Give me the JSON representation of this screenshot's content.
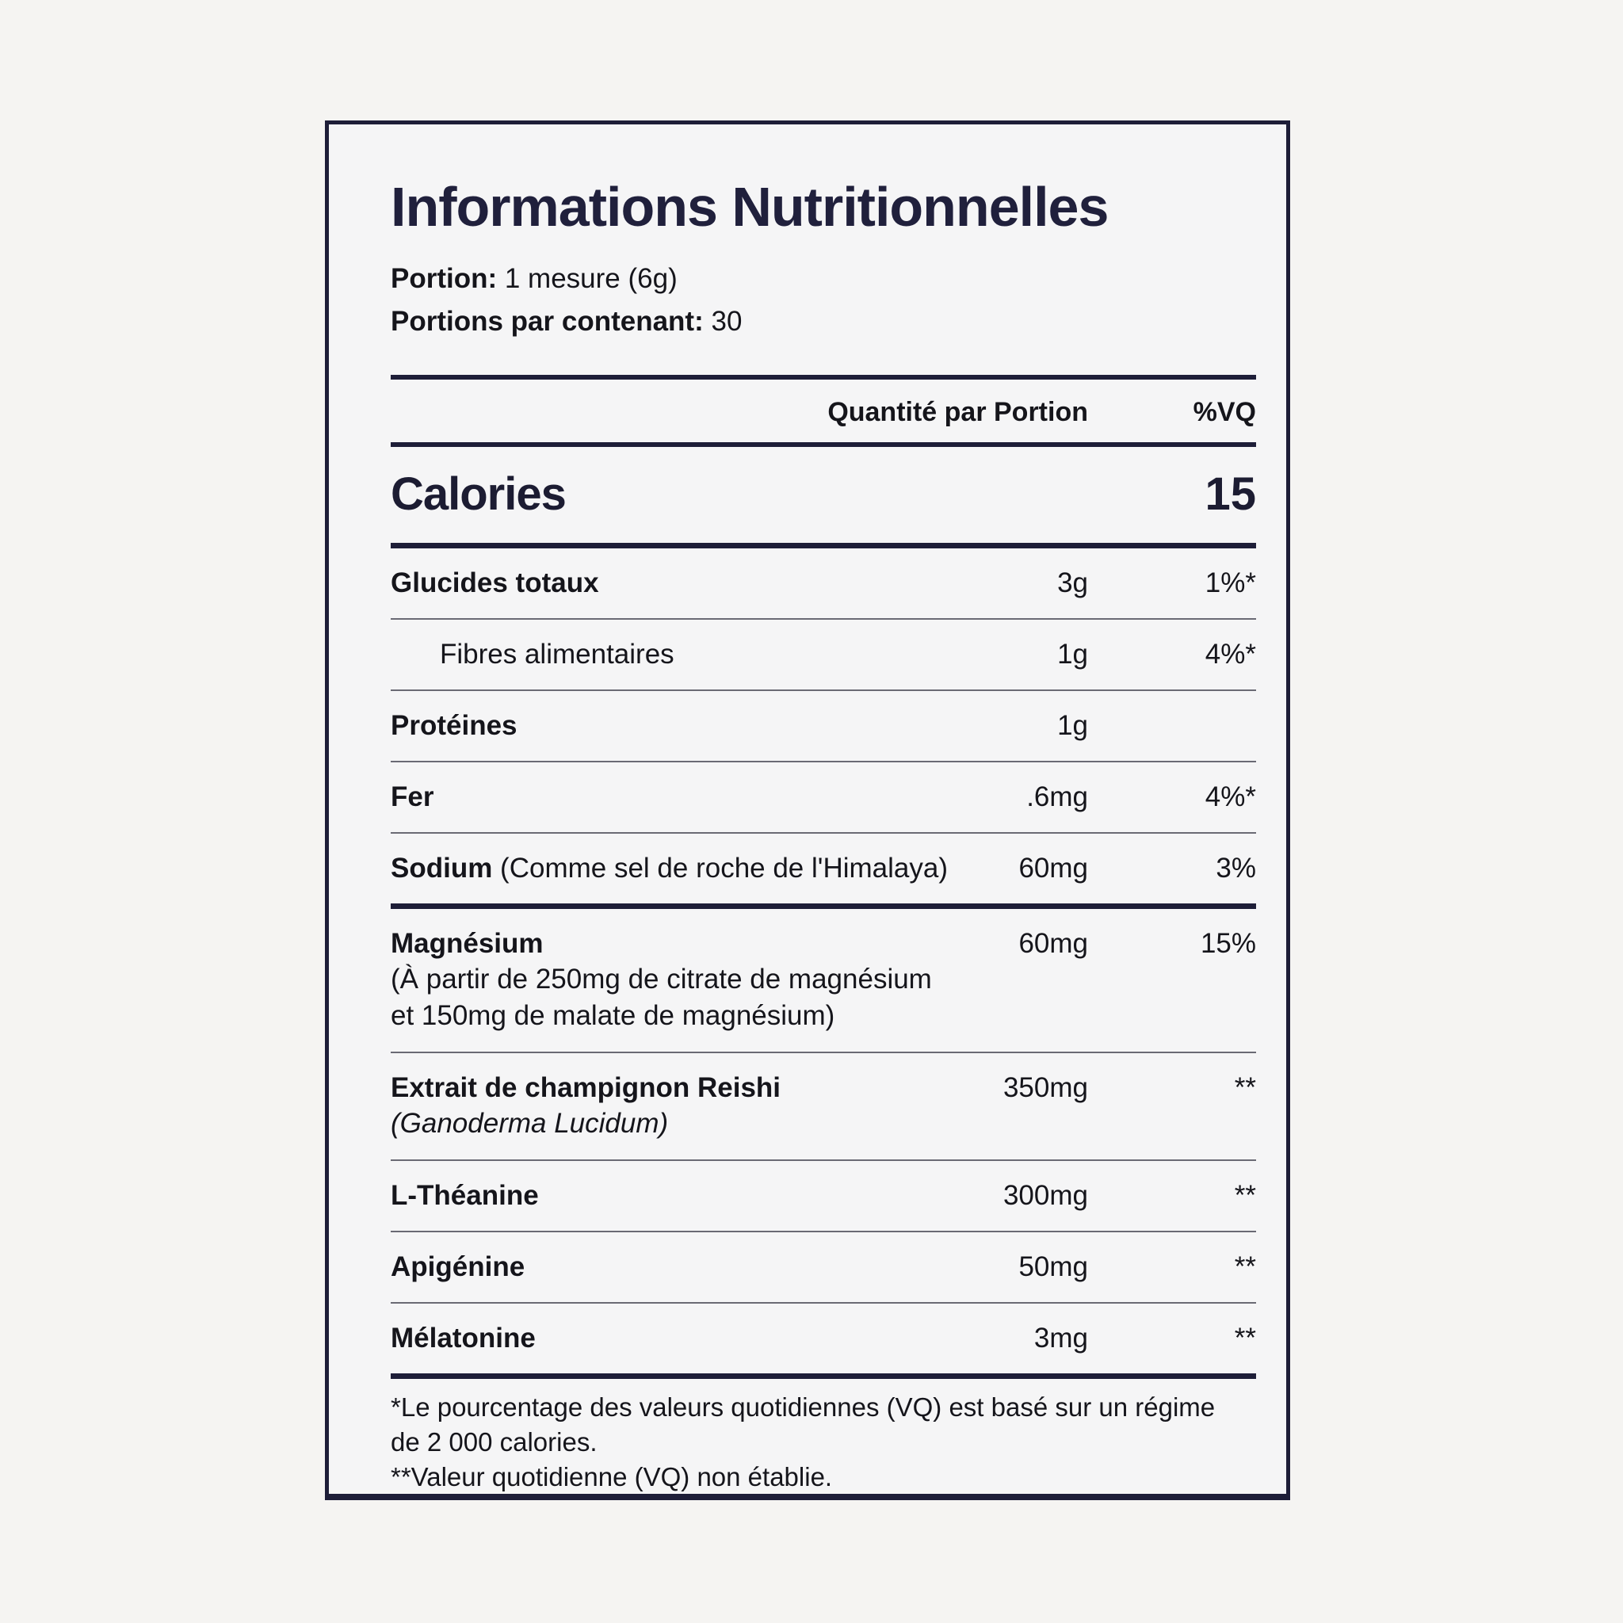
{
  "label": {
    "title": "Informations Nutritionnelles",
    "serving": {
      "portion_label": "Portion:",
      "portion_value": " 1 mesure (6g)",
      "servings_label": "Portions par contenant:",
      "servings_value": " 30"
    },
    "columns": {
      "amount_header": "Quantité par Portion",
      "dv_header": "%VQ"
    },
    "calories": {
      "name": "Calories",
      "value": "15"
    },
    "rows": {
      "glucides": {
        "name": "Glucides totaux",
        "amount": "3g",
        "dv": "1%*"
      },
      "fibres": {
        "name": "Fibres alimentaires",
        "amount": "1g",
        "dv": "4%*"
      },
      "proteines": {
        "name": "Protéines",
        "amount": "1g",
        "dv": ""
      },
      "fer": {
        "name": "Fer",
        "amount": ".6mg",
        "dv": "4%*"
      },
      "sodium": {
        "name": "Sodium",
        "note": " (Comme sel de roche de l'Himalaya)",
        "amount": "60mg",
        "dv": "3%"
      },
      "magnesium": {
        "name": "Magnésium",
        "detail_line1": "(À partir de 250mg de citrate de magnésium",
        "detail_line2": "et 150mg de malate de magnésium)",
        "amount": "60mg",
        "dv": "15%"
      },
      "reishi": {
        "name": "Extrait de champignon Reishi",
        "latin": "(Ganoderma Lucidum)",
        "amount": "350mg",
        "dv": "**"
      },
      "theanine": {
        "name": "L-Théanine",
        "amount": "300mg",
        "dv": "**"
      },
      "apigenine": {
        "name": "Apigénine",
        "amount": "50mg",
        "dv": "**"
      },
      "melatonine": {
        "name": "Mélatonine",
        "amount": "3mg",
        "dv": "**"
      }
    },
    "footnotes": {
      "line1": "*Le pourcentage des valeurs quotidiennes (VQ) est basé sur un régime",
      "line2": "de 2 000 calories.",
      "line3": "**Valeur quotidienne (VQ) non établie."
    },
    "colors": {
      "ink": "#15151b",
      "navy": "#1e1e38",
      "separator": "#6a6a74",
      "background": "#f5f4f2"
    }
  }
}
